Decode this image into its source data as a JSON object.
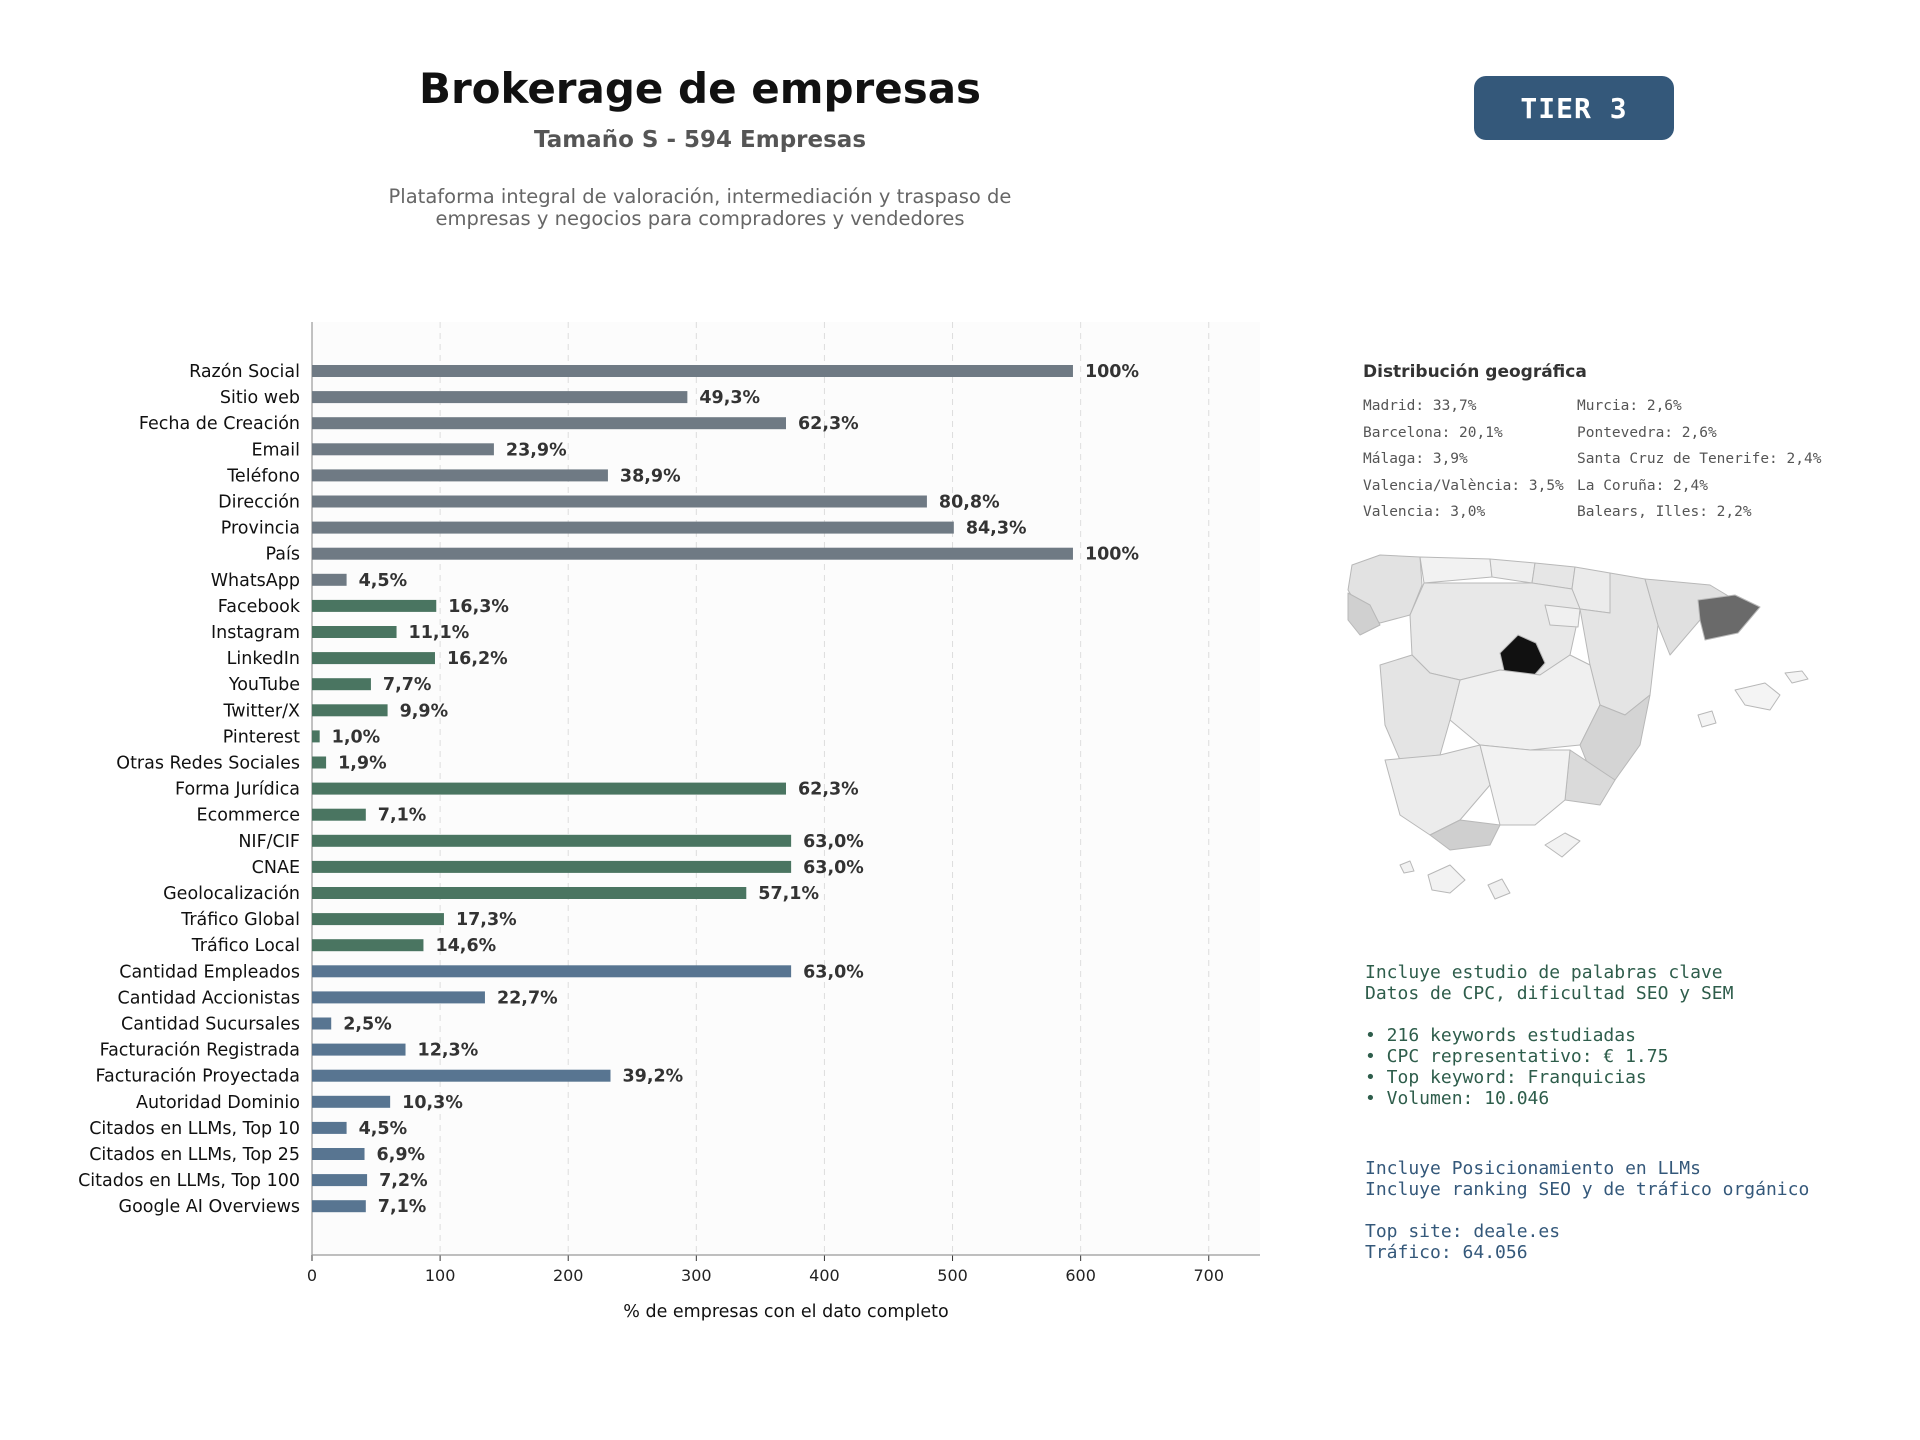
{
  "header": {
    "title": "Brokerage de empresas",
    "subtitle": "Tamaño S - 594 Empresas",
    "description_line1": "Plataforma integral de valoración, intermediación y traspaso de",
    "description_line2": "empresas y negocios para compradores y vendedores",
    "tier_label": "TIER 3"
  },
  "colors": {
    "tier_badge": "#34587a",
    "group_contact": "#6f7a84",
    "group_digital": "#4a7561",
    "group_business": "#587591",
    "value_label": "#333333",
    "plot_background": "#fcfcfc"
  },
  "chart_data": {
    "type": "bar",
    "orientation": "horizontal",
    "xlabel": "% de empresas con el dato completo",
    "xlim": [
      0,
      740
    ],
    "xticks": [
      0,
      100,
      200,
      300,
      400,
      500,
      600,
      700
    ],
    "grid": "vertical dashed",
    "categories": [
      "Razón Social",
      "Sitio web",
      "Fecha de Creación",
      "Email",
      "Teléfono",
      "Dirección",
      "Provincia",
      "País",
      "WhatsApp",
      "Facebook",
      "Instagram",
      "LinkedIn",
      "YouTube",
      "Twitter/X",
      "Pinterest",
      "Otras Redes Sociales",
      "Forma Jurídica",
      "Ecommerce",
      "NIF/CIF",
      "CNAE",
      "Geolocalización",
      "Tráfico Global",
      "Tráfico Local",
      "Cantidad Empleados",
      "Cantidad Accionistas",
      "Cantidad Sucursales",
      "Facturación Registrada",
      "Facturación Proyectada",
      "Autoridad Dominio",
      "Citados en LLMs, Top 10",
      "Citados en LLMs, Top 25",
      "Citados en LLMs, Top 100",
      "Google AI Overviews"
    ],
    "values": [
      594,
      293,
      370,
      142,
      231,
      480,
      501,
      594,
      27,
      97,
      66,
      96,
      46,
      59,
      6,
      11,
      370,
      42,
      374,
      374,
      339,
      103,
      87,
      374,
      135,
      15,
      73,
      233,
      61,
      27,
      41,
      43,
      42
    ],
    "value_labels": [
      "100%",
      "49,3%",
      "62,3%",
      "23,9%",
      "38,9%",
      "80,8%",
      "84,3%",
      "100%",
      "4,5%",
      "16,3%",
      "11,1%",
      "16,2%",
      "7,7%",
      "9,9%",
      "1,0%",
      "1,9%",
      "62,3%",
      "7,1%",
      "63,0%",
      "63,0%",
      "57,1%",
      "17,3%",
      "14,6%",
      "63,0%",
      "22,7%",
      "2,5%",
      "12,3%",
      "39,2%",
      "10,3%",
      "4,5%",
      "6,9%",
      "7,2%",
      "7,1%"
    ],
    "groups": [
      "contact",
      "contact",
      "contact",
      "contact",
      "contact",
      "contact",
      "contact",
      "contact",
      "contact",
      "digital",
      "digital",
      "digital",
      "digital",
      "digital",
      "digital",
      "digital",
      "digital",
      "digital",
      "digital",
      "digital",
      "digital",
      "digital",
      "digital",
      "business",
      "business",
      "business",
      "business",
      "business",
      "business",
      "business",
      "business",
      "business",
      "business"
    ]
  },
  "geo": {
    "title": "Distribución geográfica",
    "col1": [
      "Madrid: 33,7%",
      "Barcelona: 20,1%",
      "Málaga: 3,9%",
      "Valencia/València: 3,5%",
      "Valencia: 3,0%"
    ],
    "col2": [
      "Murcia: 2,6%",
      "Pontevedra: 2,6%",
      "Santa Cruz de Tenerife: 2,4%",
      "La Coruña: 2,4%",
      "Balears, Illes: 2,2%"
    ]
  },
  "keywords": {
    "lines": [
      "Incluye estudio de palabras clave",
      "Datos de CPC, dificultad SEO y SEM",
      "",
      "• 216 keywords estudiadas",
      "• CPC representativo: € 1.75",
      "• Top keyword: Franquicias",
      "• Volumen: 10.046"
    ]
  },
  "llm": {
    "lines": [
      "Incluye Posicionamiento en LLMs",
      "Incluye ranking SEO y de tráfico orgánico",
      "",
      "Top site: deale.es",
      "Tráfico: 64.056"
    ]
  }
}
